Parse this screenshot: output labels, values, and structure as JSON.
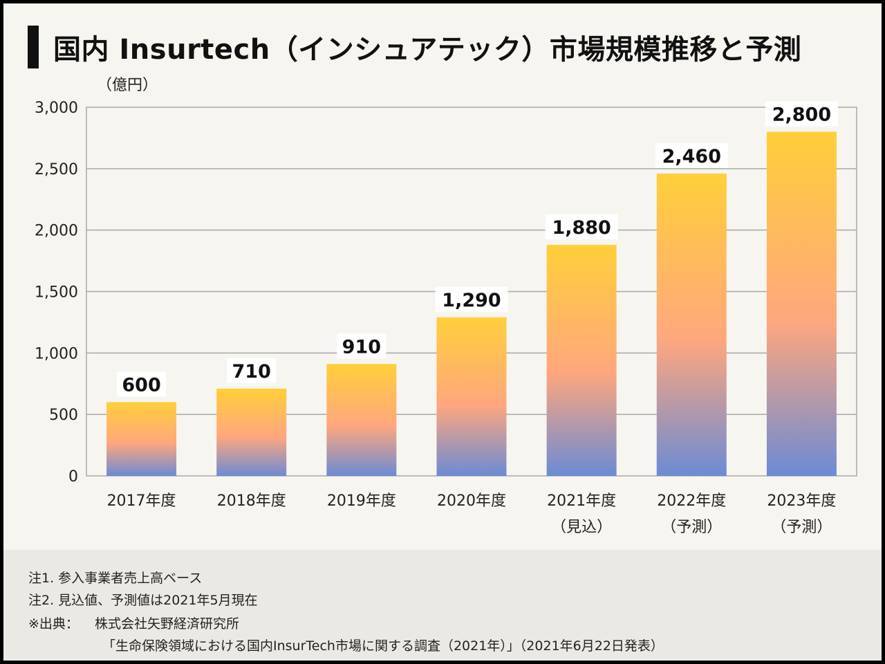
{
  "title": "国内 Insurtech（インシュアテック）市場規模推移と予測",
  "chart_data": {
    "type": "bar",
    "unit_label": "（億円）",
    "categories": [
      [
        "2017年度"
      ],
      [
        "2018年度"
      ],
      [
        "2019年度"
      ],
      [
        "2020年度"
      ],
      [
        "2021年度",
        "（見込）"
      ],
      [
        "2022年度",
        "（予測）"
      ],
      [
        "2023年度",
        "（予測）"
      ]
    ],
    "values": [
      600,
      710,
      910,
      1290,
      1880,
      2460,
      2800
    ],
    "value_labels": [
      "600",
      "710",
      "910",
      "1,290",
      "1,880",
      "2,460",
      "2,800"
    ],
    "ylim": [
      0,
      3000
    ],
    "yticks": [
      0,
      500,
      1000,
      1500,
      2000,
      2500,
      3000
    ],
    "ytick_labels": [
      "0",
      "500",
      "1,000",
      "1,500",
      "2,000",
      "2,500",
      "3,000"
    ],
    "grid": true,
    "colors": {
      "top": "#ffcf3a",
      "middle": "#ffa77e",
      "bottom": "#6c8bd4",
      "grid": "#a8a8a8"
    }
  },
  "notes": {
    "note1": "注1. 参入事業者売上高ベース",
    "note2": "注2. 見込値、予測値は2021年5月現在",
    "source_label": "※出典：",
    "source_org": "株式会社矢野経済研究所",
    "source_doc": "「生命保険領域における国内InsurTech市場に関する調査（2021年）」（2021年6月22日発表）"
  }
}
